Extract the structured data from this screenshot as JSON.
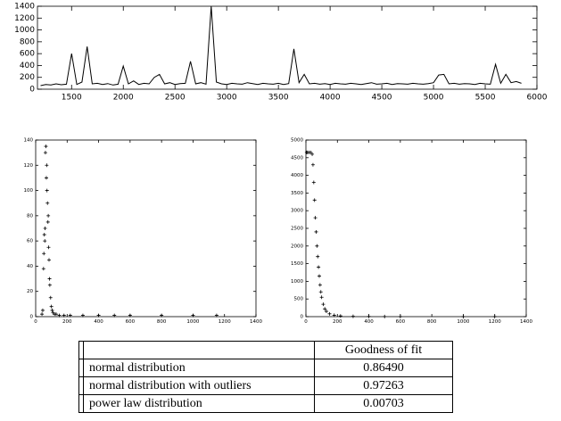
{
  "chart_data": [
    {
      "type": "line",
      "series": [
        {
          "color": "#000000",
          "x": [
            1200,
            1250,
            1300,
            1350,
            1400,
            1450,
            1500,
            1550,
            1600,
            1650,
            1700,
            1750,
            1800,
            1850,
            1900,
            1950,
            2000,
            2050,
            2100,
            2150,
            2200,
            2250,
            2300,
            2350,
            2400,
            2450,
            2500,
            2550,
            2600,
            2650,
            2700,
            2750,
            2800,
            2850,
            2900,
            2950,
            3000,
            3050,
            3100,
            3150,
            3200,
            3250,
            3300,
            3350,
            3400,
            3450,
            3500,
            3550,
            3600,
            3650,
            3700,
            3750,
            3800,
            3850,
            3900,
            3950,
            4000,
            4050,
            4100,
            4150,
            4200,
            4250,
            4300,
            4350,
            4400,
            4450,
            4500,
            4550,
            4600,
            4650,
            4700,
            4750,
            4800,
            4850,
            4900,
            4950,
            5000,
            5050,
            5100,
            5150,
            5200,
            5250,
            5300,
            5350,
            5400,
            5450,
            5500,
            5550,
            5600,
            5650,
            5700,
            5750,
            5800,
            5850
          ],
          "values": [
            60,
            80,
            70,
            90,
            75,
            85,
            600,
            80,
            120,
            720,
            90,
            100,
            80,
            95,
            70,
            85,
            390,
            90,
            140,
            80,
            100,
            90,
            200,
            250,
            90,
            110,
            80,
            95,
            100,
            470,
            90,
            110,
            85,
            1400,
            120,
            90,
            80,
            100,
            90,
            85,
            110,
            95,
            80,
            100,
            90,
            85,
            100,
            80,
            95,
            680,
            110,
            250,
            90,
            100,
            85,
            95,
            80,
            100,
            90,
            85,
            100,
            90,
            80,
            95,
            110,
            85,
            90,
            100,
            80,
            95,
            90,
            85,
            100,
            90,
            85,
            95,
            110,
            240,
            250,
            90,
            100,
            85,
            95,
            90,
            80,
            100,
            90,
            85,
            420,
            100,
            250,
            110,
            130,
            100
          ]
        }
      ],
      "xlim": [
        1170,
        6000
      ],
      "xticks": [
        1500,
        2000,
        2500,
        3000,
        3500,
        4000,
        4500,
        5000,
        5500,
        6000
      ],
      "ylim": [
        0,
        1400
      ],
      "yticks": [
        0,
        200,
        400,
        600,
        800,
        1000,
        1200,
        1400
      ]
    },
    {
      "type": "scatter",
      "series": [
        {
          "color": "#000000",
          "x": [
            40,
            45,
            50,
            52,
            55,
            58,
            60,
            62,
            65,
            68,
            70,
            72,
            75,
            78,
            80,
            82,
            85,
            88,
            90,
            95,
            100,
            105,
            110,
            120,
            130,
            150,
            180,
            220,
            300,
            400,
            500,
            600,
            800,
            1000,
            1150
          ],
          "values": [
            2,
            5,
            38,
            50,
            65,
            60,
            70,
            130,
            135,
            110,
            120,
            100,
            90,
            75,
            80,
            55,
            45,
            30,
            25,
            15,
            8,
            5,
            3,
            2,
            2,
            1,
            1,
            1,
            1,
            1,
            1,
            1,
            1,
            1,
            1
          ]
        }
      ],
      "xlim": [
        0,
        1400
      ],
      "xticks": [
        0,
        200,
        400,
        600,
        800,
        1000,
        1200,
        1400
      ],
      "ylim": [
        0,
        140
      ],
      "yticks": [
        0,
        20,
        40,
        60,
        80,
        100,
        120,
        140
      ]
    },
    {
      "type": "scatter",
      "series": [
        {
          "color": "#000000",
          "x": [
            5,
            10,
            20,
            30,
            40,
            45,
            50,
            55,
            60,
            65,
            70,
            75,
            80,
            85,
            90,
            95,
            100,
            110,
            120,
            130,
            150,
            180,
            220,
            300,
            400,
            500,
            600,
            1000,
            1200
          ],
          "values": [
            4650,
            4650,
            4650,
            4650,
            4600,
            4300,
            3800,
            3300,
            2800,
            2400,
            2000,
            1700,
            1400,
            1150,
            900,
            700,
            550,
            350,
            220,
            150,
            80,
            40,
            20,
            10,
            5,
            3,
            2,
            1,
            1
          ]
        }
      ],
      "xlim": [
        0,
        1400
      ],
      "xticks": [
        0,
        200,
        400,
        600,
        800,
        1000,
        1200,
        1400
      ],
      "ylim": [
        0,
        5000
      ],
      "yticks": [
        0,
        500,
        1000,
        1500,
        2000,
        2500,
        3000,
        3500,
        4000,
        4500,
        5000
      ]
    }
  ],
  "table": {
    "header": [
      "Goodness of fit"
    ],
    "rows": [
      [
        "normal distribution",
        "0.86490"
      ],
      [
        "normal distribution with outliers",
        "0.97263"
      ],
      [
        "power law distribution",
        "0.00703"
      ]
    ]
  }
}
